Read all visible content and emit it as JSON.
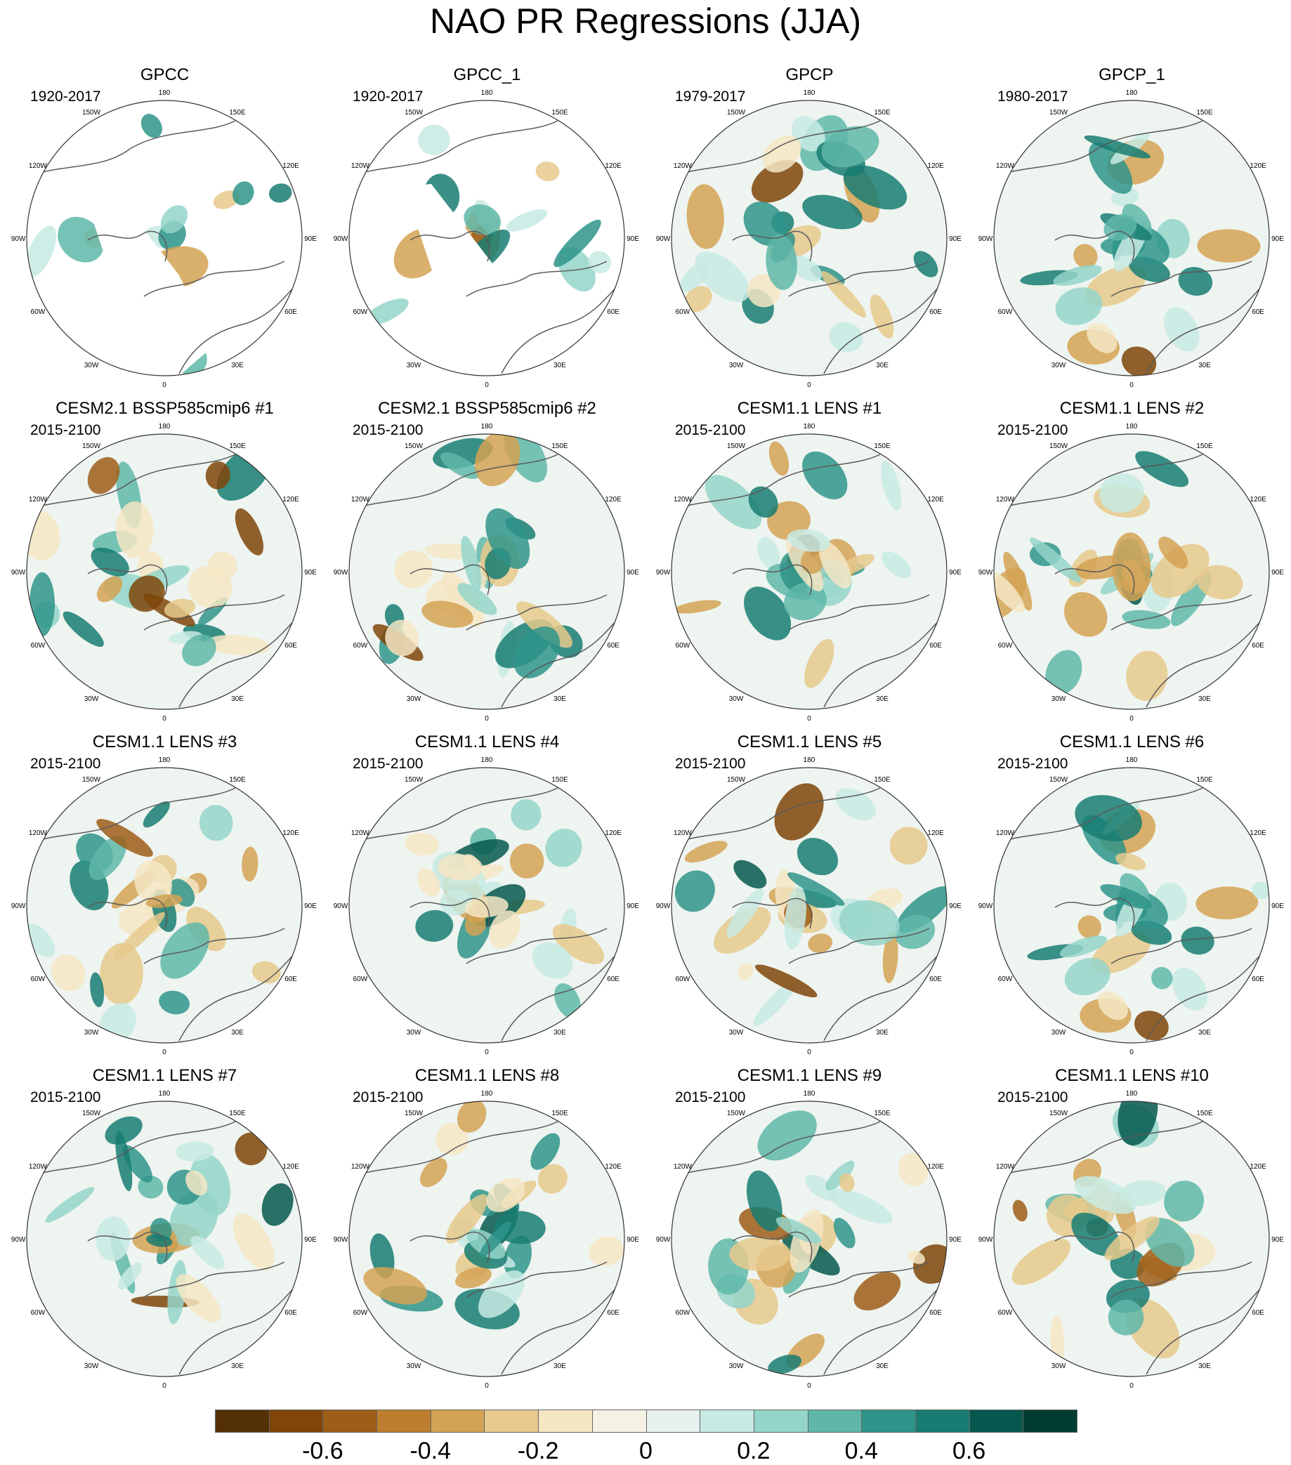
{
  "title": "NAO PR Regressions (JJA)",
  "lon_labels": [
    "180",
    "150E",
    "120E",
    "90E",
    "60E",
    "30E",
    "0",
    "30W",
    "60W",
    "90W",
    "120W",
    "150W"
  ],
  "panels": [
    {
      "title": "GPCC",
      "period": "1920-2017",
      "masked": true
    },
    {
      "title": "GPCC_1",
      "period": "1920-2017",
      "masked": true
    },
    {
      "title": "GPCP",
      "period": "1979-2017",
      "masked": false
    },
    {
      "title": "GPCP_1",
      "period": "1980-2017",
      "masked": false
    },
    {
      "title": "CESM2.1 BSSP585cmip6 #1",
      "period": "2015-2100",
      "masked": false
    },
    {
      "title": "CESM2.1 BSSP585cmip6 #2",
      "period": "2015-2100",
      "masked": false
    },
    {
      "title": "CESM1.1 LENS #1",
      "period": "2015-2100",
      "masked": false
    },
    {
      "title": "CESM1.1 LENS #2",
      "period": "2015-2100",
      "masked": false
    },
    {
      "title": "CESM1.1 LENS #3",
      "period": "2015-2100",
      "masked": false
    },
    {
      "title": "CESM1.1 LENS #4",
      "period": "2015-2100",
      "masked": false
    },
    {
      "title": "CESM1.1 LENS #5",
      "period": "2015-2100",
      "masked": false
    },
    {
      "title": "CESM1.1 LENS #6",
      "period": "2015-2100",
      "masked": false
    },
    {
      "title": "CESM1.1 LENS #7",
      "period": "2015-2100",
      "masked": false
    },
    {
      "title": "CESM1.1 LENS #8",
      "period": "2015-2100",
      "masked": false
    },
    {
      "title": "CESM1.1 LENS #9",
      "period": "2015-2100",
      "masked": false
    },
    {
      "title": "CESM1.1 LENS #10",
      "period": "2015-2100",
      "masked": false
    }
  ],
  "colorbar": {
    "colors": [
      "#543005",
      "#7f4509",
      "#9d5d17",
      "#bd7f2f",
      "#d3a253",
      "#e6c98c",
      "#f5e6c4",
      "#f5f1e4",
      "#e6f1f0",
      "#c7eae3",
      "#94d5c9",
      "#5fb7a9",
      "#2f948a",
      "#187c72",
      "#06584e",
      "#003c30"
    ],
    "tick_labels": [
      "-0.6",
      "-0.4",
      "-0.2",
      "0",
      "0.2",
      "0.4",
      "0.6"
    ],
    "tick_values": [
      -0.6,
      -0.4,
      -0.2,
      0,
      0.2,
      0.4,
      0.6
    ]
  }
}
